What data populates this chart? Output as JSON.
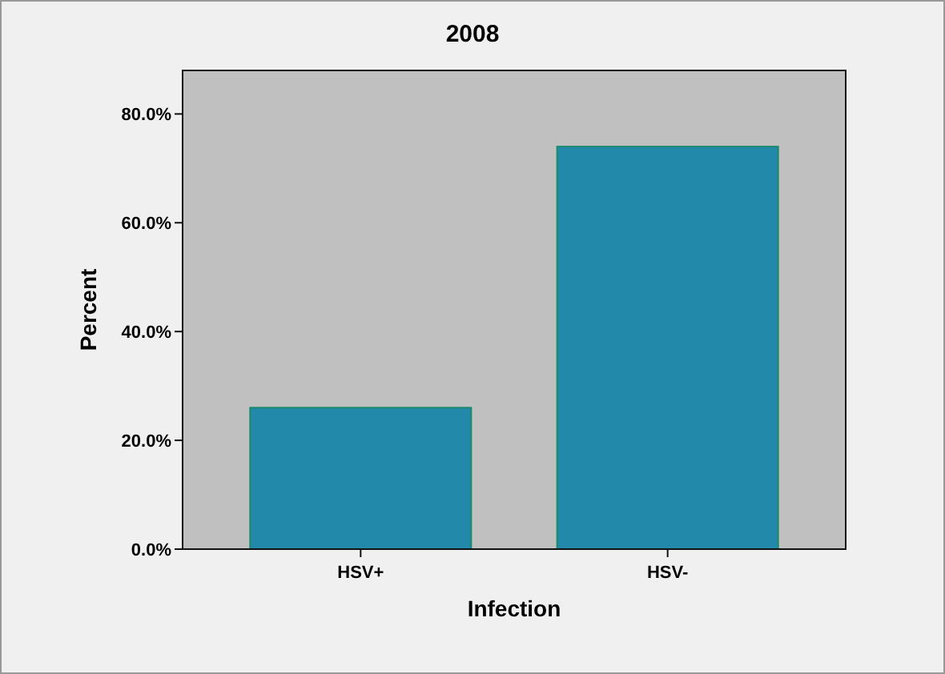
{
  "chart_data": {
    "type": "bar",
    "title": "2008",
    "xlabel": "Infection",
    "ylabel": "Percent",
    "categories": [
      "HSV+",
      "HSV-"
    ],
    "values": [
      26,
      74
    ],
    "color": "#2389aa",
    "ylim": [
      0,
      88
    ],
    "yticks": [
      {
        "value": 0,
        "label": "0.0%"
      },
      {
        "value": 20,
        "label": "20.0%"
      },
      {
        "value": 40,
        "label": "40.0%"
      },
      {
        "value": 60,
        "label": "60.0%"
      },
      {
        "value": 80,
        "label": "80.0%"
      }
    ],
    "grid": false
  }
}
